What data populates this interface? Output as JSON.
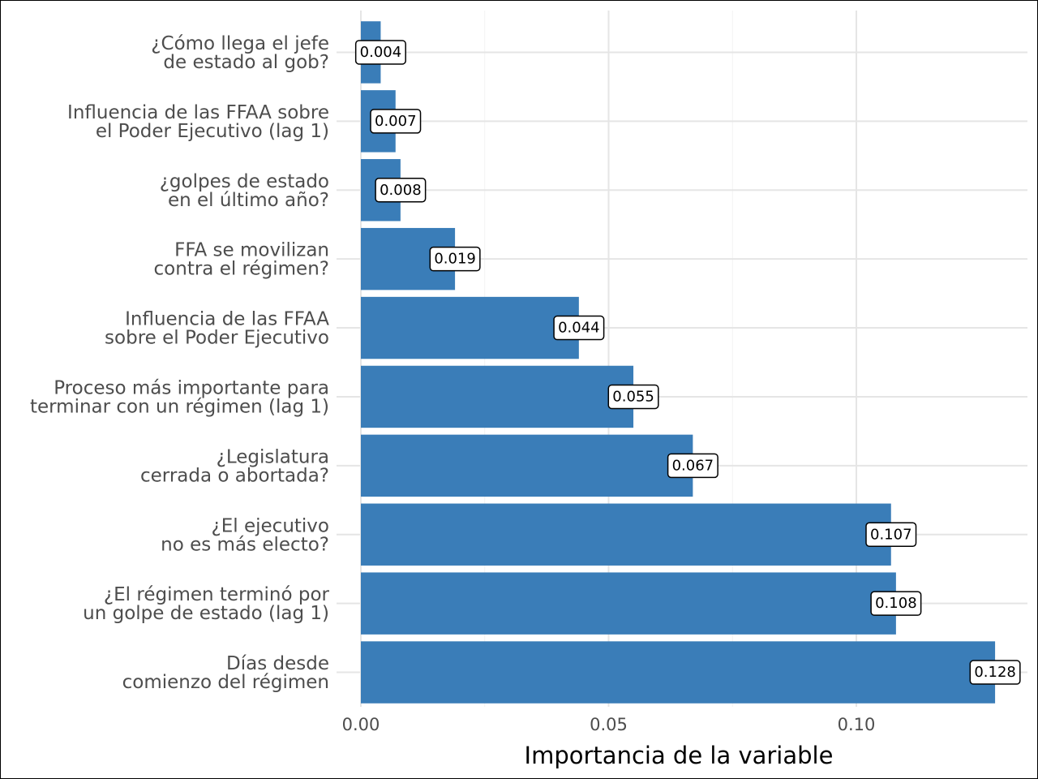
{
  "chart_data": {
    "type": "bar",
    "orientation": "horizontal",
    "categories": [
      [
        "¿Cómo llega el jefe",
        "de estado al gob?"
      ],
      [
        "Influencia de las FFAA sobre",
        "el Poder Ejecutivo (lag 1)"
      ],
      [
        "¿golpes de estado",
        "en el último año?"
      ],
      [
        "FFA se movilizan",
        "contra el régimen?"
      ],
      [
        "Influencia de las FFAA",
        "sobre el Poder Ejecutivo"
      ],
      [
        "Proceso más importante para",
        "terminar con un régimen (lag 1)"
      ],
      [
        "¿Legislatura",
        "cerrada o abortada?"
      ],
      [
        "¿El ejecutivo",
        "no es más electo?"
      ],
      [
        "¿El régimen terminó por",
        "un golpe de estado (lag 1)"
      ],
      [
        "Días desde",
        "comienzo del régimen"
      ]
    ],
    "values": [
      0.004,
      0.007,
      0.008,
      0.019,
      0.044,
      0.055,
      0.067,
      0.107,
      0.108,
      0.128
    ],
    "value_labels": [
      "0.004",
      "0.007",
      "0.008",
      "0.019",
      "0.044",
      "0.055",
      "0.067",
      "0.107",
      "0.108",
      "0.128"
    ],
    "xlabel": "Importancia de la variable",
    "ylabel": "",
    "xticks": [
      0.0,
      0.05,
      0.1
    ],
    "xtick_labels": [
      "0.00",
      "0.05",
      "0.10"
    ],
    "xlim": [
      0.0,
      0.1345
    ],
    "grid": true,
    "legend": "none",
    "bar_color": "#3a7db8",
    "grid_color": "#e5e5e5",
    "minor_grid_color": "#f2f2f2"
  }
}
